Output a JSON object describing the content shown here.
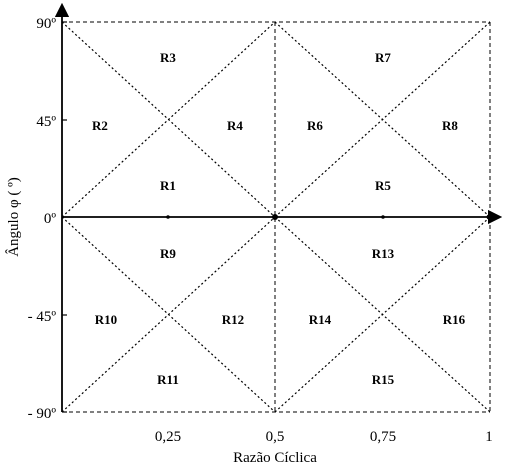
{
  "x_axis": {
    "title": "Razão Cíclica",
    "ticks": [
      "0,25",
      "0,5",
      "0,75",
      "1"
    ]
  },
  "y_axis": {
    "title": "Ângulo φ ( º)",
    "ticks": [
      "90º",
      "45º",
      "0º",
      "- 45º",
      "- 90º"
    ]
  },
  "regions": [
    "R1",
    "R2",
    "R3",
    "R4",
    "R5",
    "R6",
    "R7",
    "R8",
    "R9",
    "R10",
    "R11",
    "R12",
    "R13",
    "R14",
    "R15",
    "R16"
  ]
}
